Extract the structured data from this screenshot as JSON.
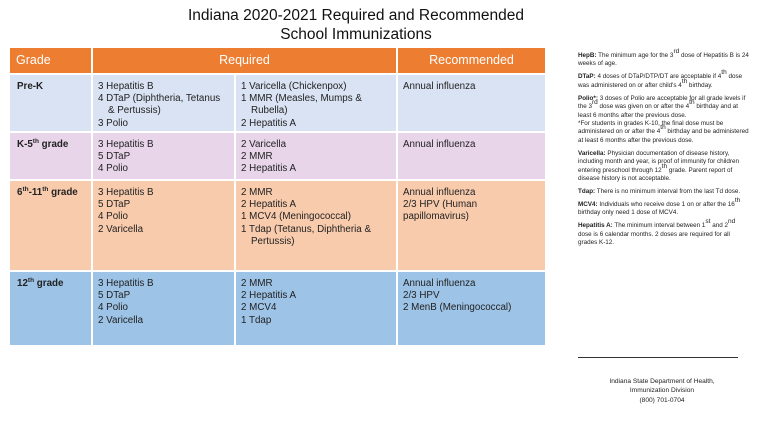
{
  "title": {
    "line1": "Indiana 2020-2021 Required and Recommended",
    "line2": "School Immunizations"
  },
  "table": {
    "headers": {
      "grade": "Grade",
      "required": "Required",
      "recommended": "Recommended"
    },
    "rows": [
      {
        "grade": "Pre-K",
        "req1": [
          "3 Hepatitis B",
          "4 DTaP (Diphtheria, Tetanus",
          "& Pertussis)",
          "3 Polio"
        ],
        "req2": [
          "1 Varicella (Chickenpox)",
          "1 MMR (Measles, Mumps &",
          "Rubella)",
          "2 Hepatitis A"
        ],
        "rec": [
          "Annual influenza"
        ]
      },
      {
        "grade_pre": "K-5",
        "grade_sup": "th",
        "grade_post": " grade",
        "req1": [
          "3 Hepatitis B",
          "5 DTaP",
          "4 Polio"
        ],
        "req2": [
          "2 Varicella",
          "2 MMR",
          "2 Hepatitis A"
        ],
        "rec": [
          "Annual influenza"
        ]
      },
      {
        "grade_a": "6",
        "grade_sup_a": "th",
        "grade_b": "-11",
        "grade_sup_b": "th",
        "grade_post": " grade",
        "req1": [
          "3 Hepatitis B",
          "5 DTaP",
          "4 Polio",
          "2 Varicella"
        ],
        "req2": [
          "2 MMR",
          "2 Hepatitis A",
          "1 MCV4 (Meningococcal)",
          "1 Tdap (Tetanus, Diphtheria &",
          "Pertussis)"
        ],
        "rec": [
          "Annual influenza",
          "2/3 HPV (Human",
          "papillomavirus)"
        ]
      },
      {
        "grade_pre": "12",
        "grade_sup": "th",
        "grade_post": " grade",
        "req1": [
          "3 Hepatitis B",
          "5 DTaP",
          "4 Polio",
          "2 Varicella"
        ],
        "req2": [
          "2 MMR",
          "2 Hepatitis A",
          "2 MCV4",
          "1 Tdap"
        ],
        "rec": [
          "Annual influenza",
          "2/3 HPV",
          "2 MenB (Meningococcal)"
        ]
      }
    ]
  },
  "notes": {
    "hepb": {
      "label": "HepB:",
      "t1": " The minimum age for the 3",
      "sup1": "rd",
      "t2": " dose of Hepatitis B is 24 weeks of age."
    },
    "dtap": {
      "label": "DTaP:",
      "t1": " 4 doses of DTaP/DTP/DT are acceptable if 4",
      "sup1": "th",
      "t2": " dose was administered on or after child's 4",
      "sup2": "th",
      "t3": " birthday."
    },
    "polio": {
      "label": "Polio*:",
      "t1": " 3 doses of Polio are acceptable for all grade levels if the 3",
      "sup1": "rd",
      "t2": " dose was given on or after the 4",
      "sup2": "th",
      "t3": " birthday and at least 6 months after the previous dose.",
      "p2a": "*For students in grades K-10, the final dose must be administered on or after the 4",
      "p2sup": "th",
      "p2b": " birthday and be administered at least 6 months after the previous dose."
    },
    "varicella": {
      "label": "Varicella:",
      "t1": " Physician documentation of disease history, including month and year, is proof of immunity for children entering preschool through 12",
      "sup1": "th",
      "t2": " grade. Parent report of disease history is not acceptable."
    },
    "tdap": {
      "label": "Tdap:",
      "t1": " There is no minimum interval from the last Td dose."
    },
    "mcv4": {
      "label": "MCV4:",
      "t1": " Individuals who receive dose 1 on or after the 16",
      "sup1": "th",
      "t2": " birthday only need 1 dose of MCV4."
    },
    "hepa": {
      "label": "Hepatitis A:",
      "t1": " The minimum interval between 1",
      "sup1": "st",
      "t2": " and 2",
      "sup2": "nd",
      "t3": " dose is 6 calendar months. 2 doses are required for all grades K-12."
    }
  },
  "footer": {
    "line1": "Indiana State Department of Health,",
    "line2": "Immunization Division",
    "line3": "(800) 701-0704"
  },
  "colors": {
    "header": "#ed7d31",
    "row_prek": "#dae3f3",
    "row_k5": "#e8d5ea",
    "row_6_11": "#f8cbad",
    "row_12": "#9dc3e6"
  }
}
